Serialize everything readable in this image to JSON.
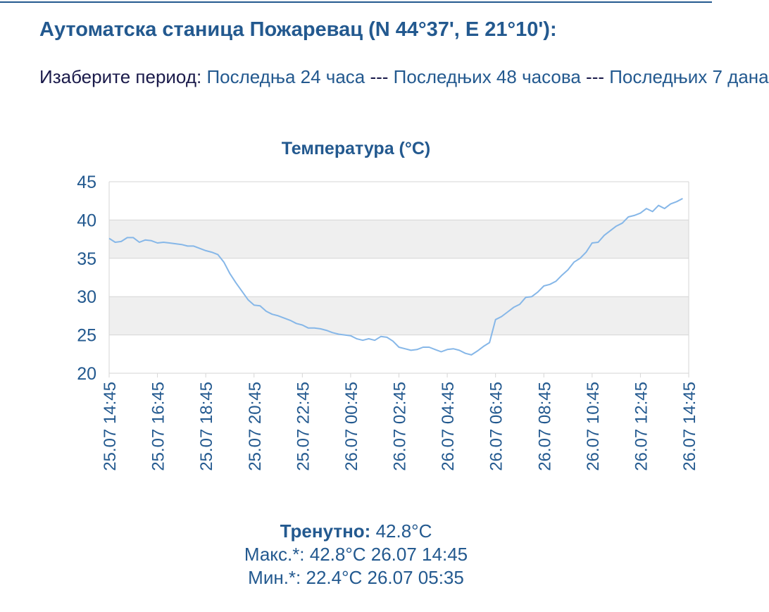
{
  "header": {
    "title": "Аутоматска станица Пожаревац (N 44°37', E 21°10'):"
  },
  "period": {
    "label": "Изаберите период:",
    "links": [
      "Последња 24 часа",
      "Последњих 48 часова",
      "Последњих 7 дана"
    ],
    "separator": " --- "
  },
  "colors": {
    "accent": "#23598f",
    "line": "#86b7e8",
    "band": "#efefef",
    "grid": "#d6d6d6"
  },
  "chart_data": {
    "type": "line",
    "title": "Температура (°C)",
    "ylim": [
      20,
      45
    ],
    "yticks": [
      20,
      25,
      30,
      35,
      40,
      45
    ],
    "x_tick_labels": [
      "25.07 14:45",
      "25.07 16:45",
      "25.07 18:45",
      "25.07 20:45",
      "25.07 22:45",
      "26.07 00:45",
      "26.07 02:45",
      "26.07 04:45",
      "26.07 06:45",
      "26.07 08:45",
      "26.07 10:45",
      "26.07 12:45",
      "26.07 14:45"
    ],
    "x_hours_range": [
      0,
      24
    ],
    "grid": true,
    "series": [
      {
        "points": [
          [
            0,
            37.6
          ],
          [
            0.25,
            37.1
          ],
          [
            0.5,
            37.2
          ],
          [
            0.75,
            37.7
          ],
          [
            1.0,
            37.7
          ],
          [
            1.25,
            37.1
          ],
          [
            1.5,
            37.4
          ],
          [
            1.75,
            37.3
          ],
          [
            2.0,
            37.0
          ],
          [
            2.25,
            37.1
          ],
          [
            2.5,
            37.0
          ],
          [
            2.75,
            36.9
          ],
          [
            3.0,
            36.8
          ],
          [
            3.25,
            36.6
          ],
          [
            3.5,
            36.6
          ],
          [
            3.75,
            36.3
          ],
          [
            4.0,
            36.0
          ],
          [
            4.25,
            35.8
          ],
          [
            4.5,
            35.5
          ],
          [
            4.75,
            34.5
          ],
          [
            5.0,
            33.0
          ],
          [
            5.25,
            31.8
          ],
          [
            5.5,
            30.7
          ],
          [
            5.75,
            29.6
          ],
          [
            6.0,
            28.9
          ],
          [
            6.25,
            28.8
          ],
          [
            6.5,
            28.1
          ],
          [
            6.75,
            27.7
          ],
          [
            7.0,
            27.5
          ],
          [
            7.25,
            27.2
          ],
          [
            7.5,
            26.9
          ],
          [
            7.75,
            26.5
          ],
          [
            8.0,
            26.3
          ],
          [
            8.25,
            25.9
          ],
          [
            8.5,
            25.9
          ],
          [
            8.75,
            25.8
          ],
          [
            9.0,
            25.6
          ],
          [
            9.25,
            25.3
          ],
          [
            9.5,
            25.1
          ],
          [
            9.75,
            25.0
          ],
          [
            10.0,
            24.9
          ],
          [
            10.25,
            24.5
          ],
          [
            10.5,
            24.3
          ],
          [
            10.75,
            24.5
          ],
          [
            11.0,
            24.3
          ],
          [
            11.25,
            24.8
          ],
          [
            11.5,
            24.7
          ],
          [
            11.75,
            24.2
          ],
          [
            12.0,
            23.4
          ],
          [
            12.25,
            23.2
          ],
          [
            12.5,
            23.0
          ],
          [
            12.75,
            23.1
          ],
          [
            13.0,
            23.4
          ],
          [
            13.25,
            23.4
          ],
          [
            13.5,
            23.1
          ],
          [
            13.75,
            22.8
          ],
          [
            14.0,
            23.1
          ],
          [
            14.25,
            23.2
          ],
          [
            14.5,
            23.0
          ],
          [
            14.75,
            22.6
          ],
          [
            15.0,
            22.4
          ],
          [
            15.25,
            22.9
          ],
          [
            15.5,
            23.5
          ],
          [
            15.75,
            24.0
          ],
          [
            16.0,
            27.0
          ],
          [
            16.25,
            27.4
          ],
          [
            16.5,
            28.0
          ],
          [
            16.75,
            28.6
          ],
          [
            17.0,
            29.0
          ],
          [
            17.25,
            29.9
          ],
          [
            17.5,
            30.0
          ],
          [
            17.75,
            30.6
          ],
          [
            18.0,
            31.4
          ],
          [
            18.25,
            31.6
          ],
          [
            18.5,
            32.0
          ],
          [
            18.75,
            32.8
          ],
          [
            19.0,
            33.5
          ],
          [
            19.25,
            34.5
          ],
          [
            19.5,
            35.0
          ],
          [
            19.75,
            35.8
          ],
          [
            20.0,
            37.0
          ],
          [
            20.25,
            37.1
          ],
          [
            20.5,
            38.0
          ],
          [
            20.75,
            38.6
          ],
          [
            21.0,
            39.2
          ],
          [
            21.25,
            39.6
          ],
          [
            21.5,
            40.4
          ],
          [
            21.75,
            40.6
          ],
          [
            22.0,
            40.9
          ],
          [
            22.25,
            41.5
          ],
          [
            22.5,
            41.1
          ],
          [
            22.75,
            41.9
          ],
          [
            23.0,
            41.5
          ],
          [
            23.25,
            42.1
          ],
          [
            23.5,
            42.4
          ],
          [
            23.75,
            42.8
          ]
        ]
      }
    ]
  },
  "stats": {
    "current_label": "Тренутно:",
    "current_value": "42.8°C",
    "max_text": "Макс.*: 42.8°C 26.07 14:45",
    "min_text": "Мин.*: 22.4°C 26.07 05:35"
  }
}
